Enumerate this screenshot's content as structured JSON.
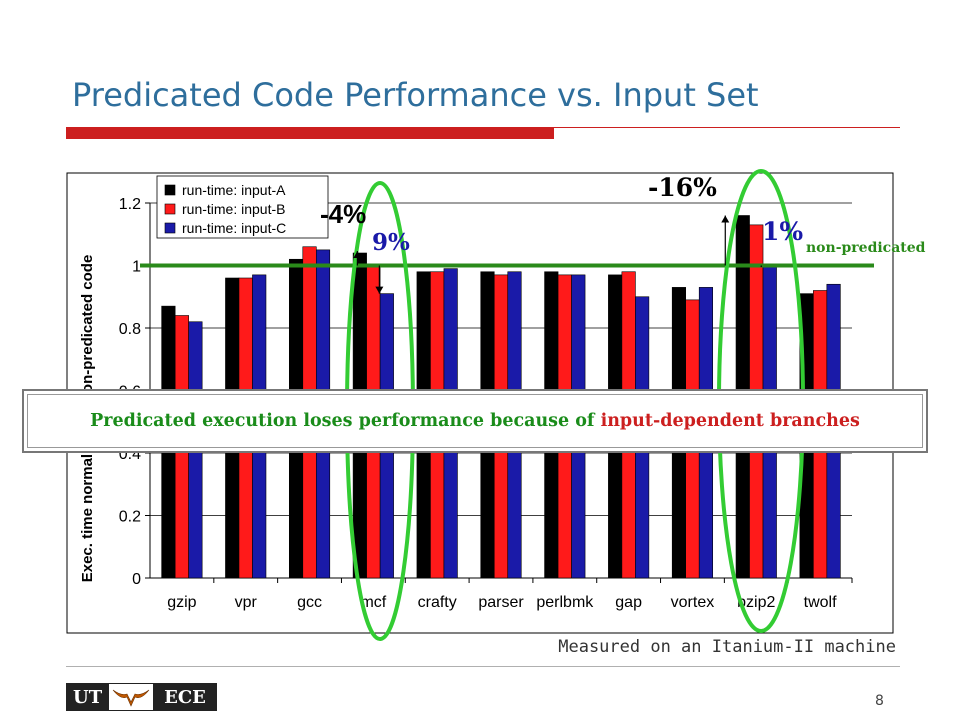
{
  "slide": {
    "title": "Predicated Code Performance vs. Input Set",
    "caption": "Measured on an Itanium-II machine",
    "callout_text_green": "Predicated execution loses performance because of ",
    "callout_text_red": "input-dependent branches",
    "page_number": "8",
    "logo_left": "UT",
    "logo_right": "ECE"
  },
  "colors": {
    "title": "#2e6e9c",
    "accent_red": "#cc1f1f",
    "highlight_green": "#33cc33",
    "baseline_green": "#2a8a1a",
    "series_a": "#000000",
    "series_b": "#ff1a1a",
    "series_c": "#1a1aa8"
  },
  "annotations": {
    "mcf_a": "-4%",
    "mcf_c": "9%",
    "bzip2_a": "-16%",
    "bzip2_c": "1%",
    "baseline_label": "non-predicated"
  },
  "chart_data": {
    "type": "bar",
    "categories": [
      "gzip",
      "vpr",
      "gcc",
      "mcf",
      "crafty",
      "parser",
      "perlbmk",
      "gap",
      "vortex",
      "bzip2",
      "twolf"
    ],
    "series": [
      {
        "name": "run-time: input-A",
        "values": [
          0.87,
          0.96,
          1.02,
          1.04,
          0.98,
          0.98,
          0.98,
          0.97,
          0.93,
          1.16,
          0.91
        ]
      },
      {
        "name": "run-time: input-B",
        "values": [
          0.84,
          0.96,
          1.06,
          1.0,
          0.98,
          0.97,
          0.97,
          0.98,
          0.89,
          1.13,
          0.92
        ]
      },
      {
        "name": "run-time: input-C",
        "values": [
          0.82,
          0.97,
          1.05,
          0.91,
          0.99,
          0.98,
          0.97,
          0.9,
          0.93,
          1.0,
          0.94
        ]
      }
    ],
    "ylabel": "Exec. time normalized to non-predicated code",
    "xlabel": "",
    "ylim": [
      0,
      1.2
    ],
    "yticks": [
      "0",
      "0.2",
      "0.4",
      "0.6",
      "0.8",
      "1",
      "1.2"
    ],
    "grid": true,
    "legend": "top-left",
    "baseline_value": 1.0
  }
}
